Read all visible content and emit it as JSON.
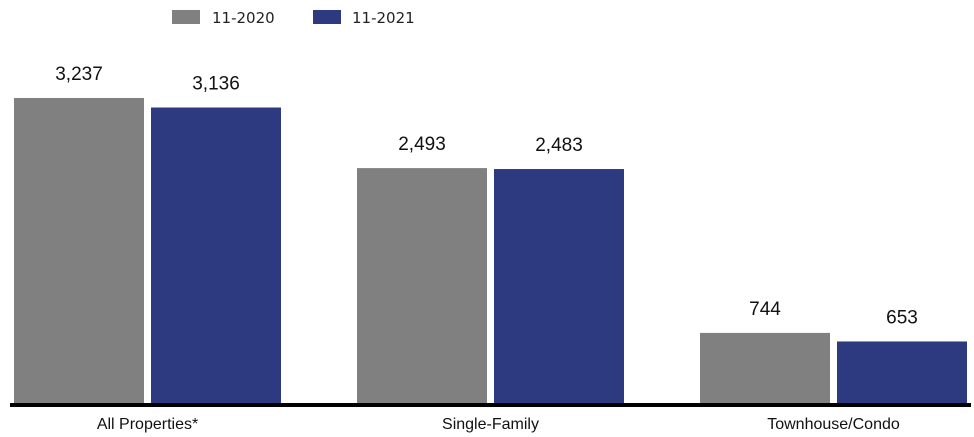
{
  "chart_data": {
    "type": "bar",
    "categories": [
      "All Properties*",
      "Single-Family",
      "Townhouse/Condo"
    ],
    "series": [
      {
        "name": "11-2020",
        "color": "#808080",
        "values": [
          3237,
          2493,
          744
        ],
        "labels": [
          "3,237",
          "2,493",
          "744"
        ]
      },
      {
        "name": "11-2021",
        "color": "#2E3A80",
        "values": [
          3136,
          2483,
          653
        ],
        "labels": [
          "3,136",
          "2,483",
          "653"
        ]
      }
    ],
    "legend_position": "top-left",
    "grid": false,
    "ylim": [
      0,
      3237
    ]
  }
}
